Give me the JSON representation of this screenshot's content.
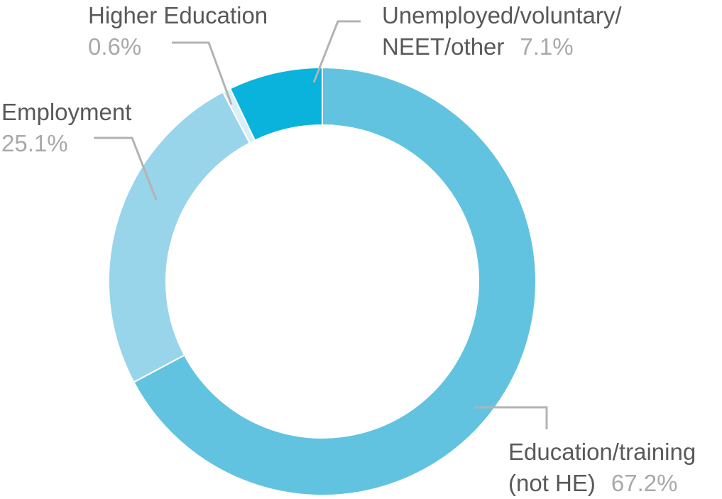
{
  "chart_data": {
    "type": "pie",
    "donut": true,
    "legend": "none",
    "slices": [
      {
        "label_line1": "Education/training",
        "label_line2": "(not HE)",
        "value": 67.2,
        "value_text": "67.2%",
        "color": "#62c3e1"
      },
      {
        "label_line1": "Employment",
        "label_line2": "",
        "value": 25.1,
        "value_text": "25.1%",
        "color": "#98d4ea"
      },
      {
        "label_line1": "Higher Education",
        "label_line2": "",
        "value": 0.6,
        "value_text": "0.6%",
        "color": "#d8eff8"
      },
      {
        "label_line1": "Unemployed/voluntary/",
        "label_line2": "NEET/other",
        "value": 7.1,
        "value_text": "7.1%",
        "color": "#09b3db"
      }
    ]
  },
  "colors": {
    "label_text": "#58595b",
    "value_text": "#a7a9ac",
    "leader_line": "#b3b3b3",
    "background": "#ffffff"
  }
}
